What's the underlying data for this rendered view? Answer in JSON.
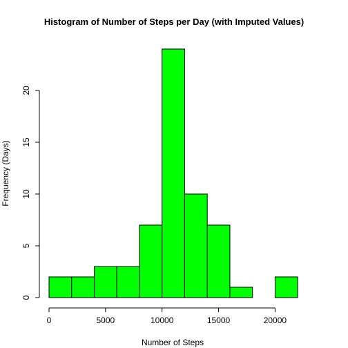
{
  "chart_data": {
    "type": "bar",
    "title": "Histogram of Number of Steps per Day (with Imputed Values)",
    "xlabel": "Number of Steps",
    "ylabel": "Frequency (Days)",
    "bin_width": 2000,
    "bins": [
      {
        "start": 0,
        "end": 2000,
        "count": 2
      },
      {
        "start": 2000,
        "end": 4000,
        "count": 2
      },
      {
        "start": 4000,
        "end": 6000,
        "count": 3
      },
      {
        "start": 6000,
        "end": 8000,
        "count": 3
      },
      {
        "start": 8000,
        "end": 10000,
        "count": 7
      },
      {
        "start": 10000,
        "end": 12000,
        "count": 24
      },
      {
        "start": 12000,
        "end": 14000,
        "count": 10
      },
      {
        "start": 14000,
        "end": 16000,
        "count": 7
      },
      {
        "start": 16000,
        "end": 18000,
        "count": 1
      },
      {
        "start": 18000,
        "end": 20000,
        "count": 0
      },
      {
        "start": 20000,
        "end": 22000,
        "count": 2
      }
    ],
    "xlim": [
      0,
      22000
    ],
    "ylim": [
      0,
      24
    ],
    "x_ticks": [
      "0",
      "5000",
      "10000",
      "15000",
      "20000"
    ],
    "y_ticks": [
      "0",
      "5",
      "10",
      "15",
      "20"
    ],
    "grid": false,
    "bar_color": "#00ff00",
    "bar_edge_color": "#000000"
  }
}
